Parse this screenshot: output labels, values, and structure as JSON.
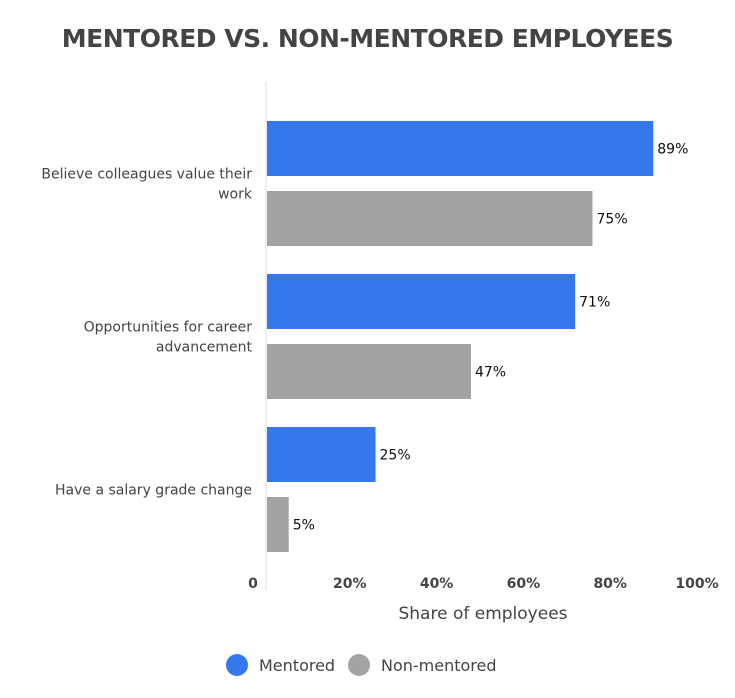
{
  "chart_data": {
    "type": "bar",
    "orientation": "horizontal",
    "title": "MENTORED VS. NON-MENTORED EMPLOYEES",
    "xlabel": "Share of employees",
    "ylabel": "",
    "categories": [
      [
        "Believe colleagues value their",
        "work"
      ],
      [
        "Opportunities for career",
        "advancement"
      ],
      [
        "Have a salary grade change"
      ]
    ],
    "series": [
      {
        "name": "Mentored",
        "color": "#3577ED",
        "values": [
          89,
          71,
          25
        ],
        "labels": [
          "89%",
          "71%",
          "25%"
        ]
      },
      {
        "name": "Non-mentored",
        "color": "#A3A3A3",
        "values": [
          75,
          47,
          5
        ],
        "labels": [
          "75%",
          "47%",
          "5%"
        ]
      }
    ],
    "xlim": [
      0,
      100
    ],
    "xticks": [
      0,
      20,
      40,
      60,
      80,
      100
    ],
    "xtick_labels": [
      "0",
      "20%",
      "40%",
      "60%",
      "80%",
      "100%"
    ],
    "grid": false,
    "legend_position": "bottom"
  }
}
